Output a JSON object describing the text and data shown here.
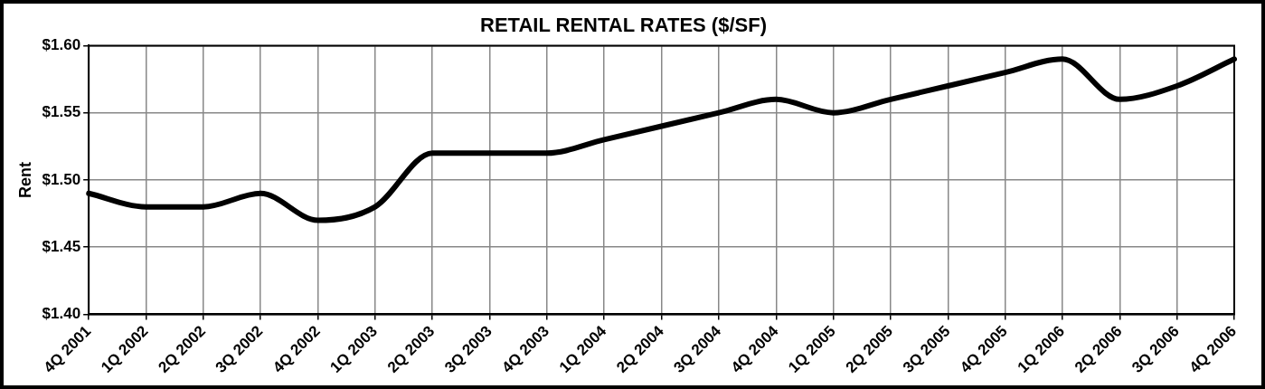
{
  "chart_data": {
    "type": "line",
    "title": "RETAIL RENTAL RATES ($/SF)",
    "ylabel": "Rent",
    "categories": [
      "4Q 2001",
      "1Q 2002",
      "2Q 2002",
      "3Q 2002",
      "4Q 2002",
      "1Q 2003",
      "2Q 2003",
      "3Q 2003",
      "4Q 2003",
      "1Q 2004",
      "2Q 2004",
      "3Q 2004",
      "4Q 2004",
      "1Q 2005",
      "2Q 2005",
      "3Q 2005",
      "4Q 2005",
      "1Q 2006",
      "2Q 2006",
      "3Q 2006",
      "4Q 2006"
    ],
    "series": [
      {
        "color": "#000000",
        "values": [
          1.49,
          1.48,
          1.48,
          1.49,
          1.47,
          1.48,
          1.52,
          1.52,
          1.52,
          1.53,
          1.54,
          1.55,
          1.56,
          1.55,
          1.56,
          1.57,
          1.58,
          1.59,
          1.56,
          1.57,
          1.59
        ]
      }
    ],
    "ylim": [
      1.4,
      1.6
    ],
    "yticks": [
      {
        "value": 1.4,
        "label": "$1.40"
      },
      {
        "value": 1.45,
        "label": "$1.45"
      },
      {
        "value": 1.5,
        "label": "$1.50"
      },
      {
        "value": 1.55,
        "label": "$1.55"
      },
      {
        "value": 1.6,
        "label": "$1.60"
      }
    ],
    "grid": true,
    "legend": false,
    "marker": "none",
    "line_style": "solid"
  }
}
